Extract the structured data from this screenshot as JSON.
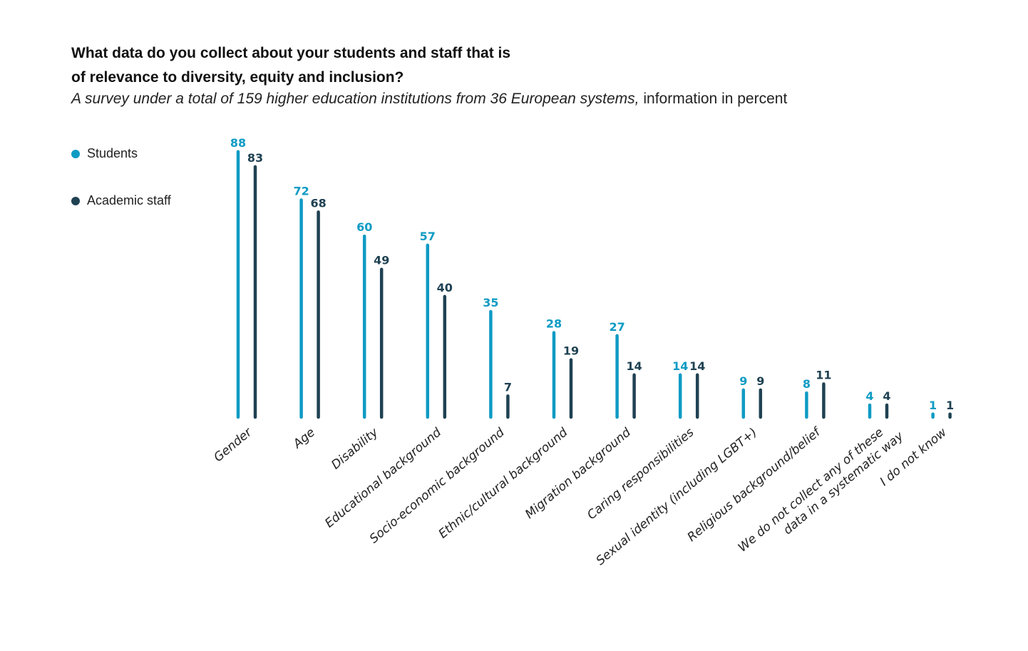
{
  "chart_data": {
    "type": "bar",
    "title": "What data do you collect about your students and staff that is of relevance to diversity, equity and inclusion?",
    "title_lines": [
      "What data do you collect about your students and staff that is",
      "of relevance to diversity, equity and inclusion?"
    ],
    "subtitle_italic": "A survey under a total of 159 higher education institutions from 36 European systems,",
    "subtitle_plain": " information in percent",
    "xlabel": "",
    "ylabel": "",
    "ylim": [
      0,
      100
    ],
    "grid": false,
    "legend_position": "left",
    "categories": [
      [
        "Gender"
      ],
      [
        "Age"
      ],
      [
        "Disability"
      ],
      [
        "Educational background"
      ],
      [
        "Socio-economic background"
      ],
      [
        "Ethnic/cultural background"
      ],
      [
        "Migration background"
      ],
      [
        "Caring responsibilities"
      ],
      [
        "Sexual identity (including LGBT+)"
      ],
      [
        "Religious background/belief"
      ],
      [
        "We do not collect any of these",
        "data in a systematic way"
      ],
      [
        "I do not know"
      ]
    ],
    "series": [
      {
        "name": "Students",
        "color": "#0e9bc4",
        "values": [
          88,
          72,
          60,
          57,
          35,
          28,
          27,
          14,
          9,
          8,
          4,
          1
        ]
      },
      {
        "name": "Academic staff",
        "color": "#1f4253",
        "values": [
          83,
          68,
          49,
          40,
          7,
          19,
          14,
          14,
          9,
          11,
          4,
          1
        ]
      }
    ]
  }
}
